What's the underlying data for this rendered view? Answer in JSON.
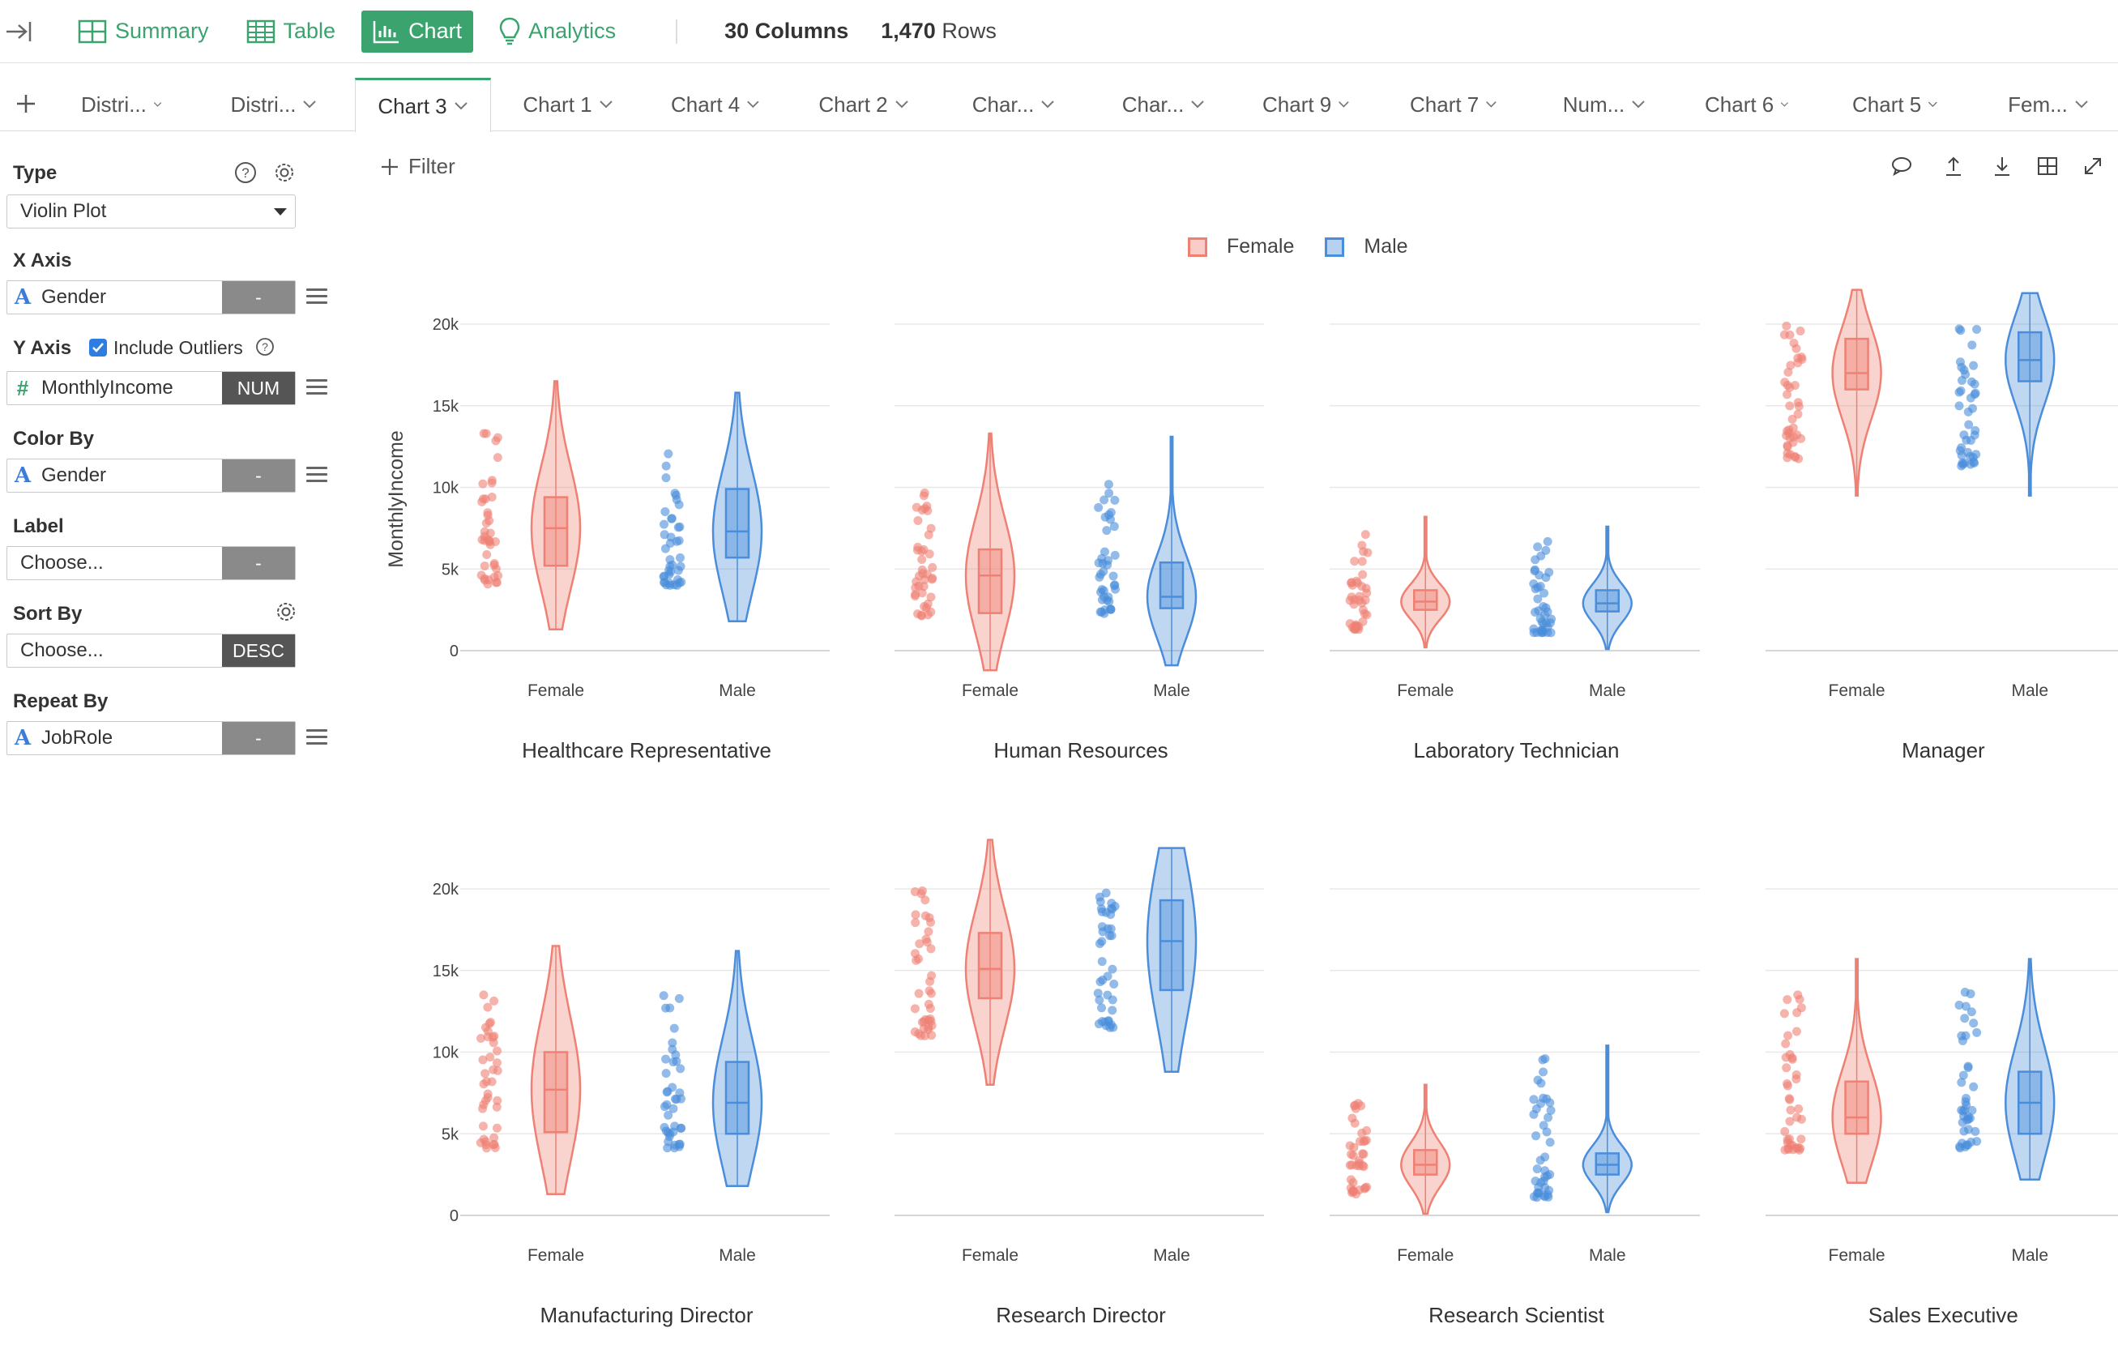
{
  "toolbar": {
    "nav": [
      {
        "label": "Summary",
        "icon": "summary-grid-icon",
        "active": false
      },
      {
        "label": "Table",
        "icon": "table-icon",
        "active": false
      },
      {
        "label": "Chart",
        "icon": "bar-chart-icon",
        "active": true
      },
      {
        "label": "Analytics",
        "icon": "lightbulb-icon",
        "active": false
      }
    ],
    "columns_count": "30",
    "columns_label": "Columns",
    "rows_count": "1,470",
    "rows_label": "Rows"
  },
  "tabs": [
    {
      "label": "Distri..."
    },
    {
      "label": "Distri..."
    },
    {
      "label": "Chart 3",
      "active": true
    },
    {
      "label": "Chart 1"
    },
    {
      "label": "Chart 4"
    },
    {
      "label": "Chart 2"
    },
    {
      "label": "Char..."
    },
    {
      "label": "Char..."
    },
    {
      "label": "Chart 9"
    },
    {
      "label": "Chart 7"
    },
    {
      "label": "Num..."
    },
    {
      "label": "Chart 6"
    },
    {
      "label": "Chart 5"
    },
    {
      "label": "Fem..."
    }
  ],
  "left_panel": {
    "type_label": "Type",
    "type_value": "Violin Plot",
    "x_axis_label": "X Axis",
    "x_axis_value": "Gender",
    "x_axis_badge": "-",
    "y_axis_label": "Y Axis",
    "include_outliers_label": "Include Outliers",
    "include_outliers_checked": true,
    "y_axis_value": "MonthlyIncome",
    "y_axis_badge": "NUM",
    "color_by_label": "Color By",
    "color_by_value": "Gender",
    "color_by_badge": "-",
    "label_label": "Label",
    "label_value": "Choose...",
    "label_badge": "-",
    "sort_by_label": "Sort By",
    "sort_by_value": "Choose...",
    "sort_by_badge": "DESC",
    "repeat_by_label": "Repeat By",
    "repeat_by_value": "JobRole",
    "repeat_by_badge": "-"
  },
  "main": {
    "filter_label": "Filter"
  },
  "colors": {
    "accent": "#3aa36e",
    "female": "#ef8074",
    "male": "#4a8ddb"
  },
  "chart_data": {
    "type": "violin",
    "ylabel": "MonthlyIncome",
    "y_ticks": [
      "0",
      "5k",
      "10k",
      "15k",
      "20k"
    ],
    "ylim": [
      0,
      20000
    ],
    "categories": [
      "Female",
      "Male"
    ],
    "legend": [
      "Female",
      "Male"
    ],
    "legend_position": "top-center",
    "facets": [
      {
        "title": "Healthcare Representative",
        "series": [
          {
            "name": "Female",
            "q1": 5200,
            "median": 7500,
            "q3": 9400,
            "min": 1300,
            "max": 16500,
            "points_min": 4000,
            "points_max": 14000
          },
          {
            "name": "Male",
            "q1": 5700,
            "median": 7300,
            "q3": 9900,
            "min": 1800,
            "max": 15800,
            "points_min": 4000,
            "points_min_note": "",
            "points_max": 13600
          }
        ]
      },
      {
        "title": "Human Resources",
        "series": [
          {
            "name": "Female",
            "q1": 2300,
            "median": 4600,
            "q3": 6200,
            "min": -1200,
            "max": 13300,
            "points_min": 2100,
            "points_max": 10000
          },
          {
            "name": "Male",
            "q1": 2600,
            "median": 3300,
            "q3": 5400,
            "min": -900,
            "max": 13100,
            "points_min": 2200,
            "points_max": 10700
          }
        ]
      },
      {
        "title": "Laboratory Technician",
        "series": [
          {
            "name": "Female",
            "q1": 2500,
            "median": 3000,
            "q3": 3700,
            "min": 200,
            "max": 8200,
            "points_min": 1300,
            "points_max": 7500
          },
          {
            "name": "Male",
            "q1": 2400,
            "median": 2900,
            "q3": 3700,
            "min": 100,
            "max": 7600,
            "points_min": 1100,
            "points_max": 7000
          }
        ]
      },
      {
        "title": "Manager",
        "series": [
          {
            "name": "Female",
            "q1": 16000,
            "median": 17000,
            "q3": 19100,
            "min": 9500,
            "max": 22100,
            "points_min": 11700,
            "points_max": 20000
          },
          {
            "name": "Male",
            "q1": 16500,
            "median": 17800,
            "q3": 19500,
            "min": 9500,
            "max": 21900,
            "points_min": 11200,
            "points_max": 20000
          }
        ]
      },
      {
        "title": "Manufacturing Director",
        "series": [
          {
            "name": "Female",
            "q1": 5100,
            "median": 7700,
            "q3": 10000,
            "min": 1300,
            "max": 16500,
            "points_min": 4100,
            "points_max": 13900
          },
          {
            "name": "Male",
            "q1": 5000,
            "median": 6900,
            "q3": 9400,
            "min": 1800,
            "max": 16200,
            "points_min": 4100,
            "points_max": 14000
          }
        ]
      },
      {
        "title": "Research Director",
        "series": [
          {
            "name": "Female",
            "q1": 13300,
            "median": 15100,
            "q3": 17300,
            "min": 8000,
            "max": 23000,
            "points_min": 11000,
            "points_max": 20000
          },
          {
            "name": "Male",
            "q1": 13800,
            "median": 16800,
            "q3": 19300,
            "min": 8800,
            "max": 22500,
            "points_min": 11500,
            "points_max": 20000
          }
        ]
      },
      {
        "title": "Research Scientist",
        "series": [
          {
            "name": "Female",
            "q1": 2500,
            "median": 3100,
            "q3": 4000,
            "min": 100,
            "max": 8000,
            "points_min": 1300,
            "points_max": 7000
          },
          {
            "name": "Male",
            "q1": 2500,
            "median": 3100,
            "q3": 3800,
            "min": 200,
            "max": 10400,
            "points_min": 1100,
            "points_max": 9800
          }
        ]
      },
      {
        "title": "Sales Executive",
        "series": [
          {
            "name": "Female",
            "q1": 5000,
            "median": 6000,
            "q3": 8200,
            "min": 2000,
            "max": 15700,
            "points_min": 4000,
            "points_max": 13700
          },
          {
            "name": "Male",
            "q1": 5000,
            "median": 6900,
            "q3": 8800,
            "min": 2200,
            "max": 15700,
            "points_min": 4000,
            "points_max": 13900
          }
        ]
      }
    ]
  }
}
